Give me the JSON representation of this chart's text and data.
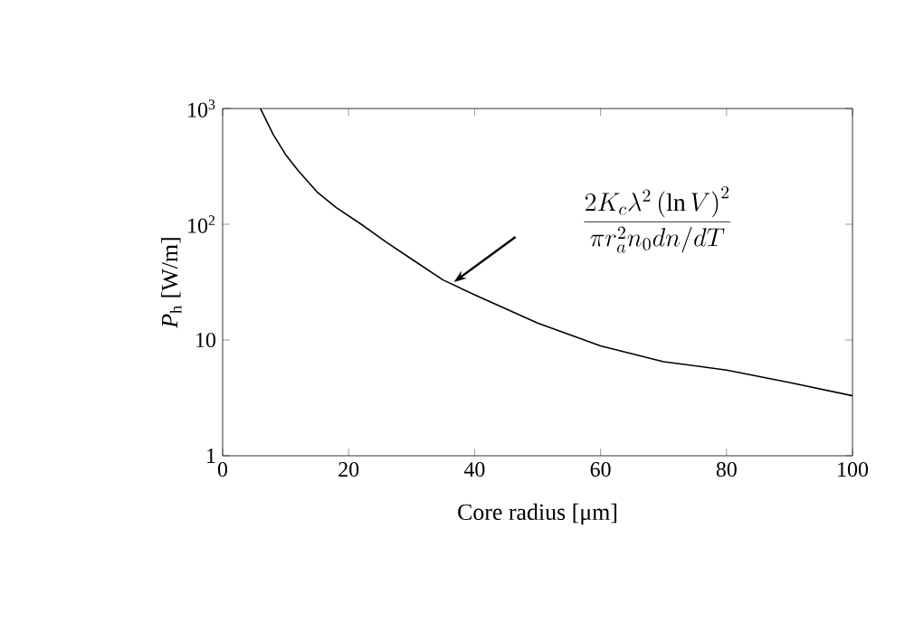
{
  "chart_data": {
    "type": "line",
    "xlabel": "Core radius [μm]",
    "ylabel": "*P*$_{h}$ [W/m]",
    "log": "y",
    "xlim": [
      0,
      100
    ],
    "ylim": [
      1,
      1000
    ],
    "xticks": [
      0,
      20,
      40,
      60,
      80,
      100
    ],
    "yticks": [
      1,
      10,
      {
        "value": 100,
        "label": "10$^{2}$"
      },
      {
        "value": 1000,
        "label": "10$^{3}$"
      }
    ],
    "series": [
      {
        "color": "#000000",
        "x": [
          6,
          8,
          10,
          12,
          15,
          18,
          22,
          26,
          30,
          35,
          40,
          50,
          60,
          70,
          80,
          90,
          100
        ],
        "values": [
          1000,
          600,
          400,
          290,
          190,
          140,
          100,
          70,
          50,
          33,
          24.6,
          14,
          8.9,
          6.5,
          5.5,
          4.3,
          3.3
        ]
      }
    ],
    "annotations": [
      "\\frac{2K_c\\lambda^2\\left(\\ln V\\right)^2}{\\pi r_a^2 n_0 dn/dT}"
    ],
    "grid": false
  }
}
